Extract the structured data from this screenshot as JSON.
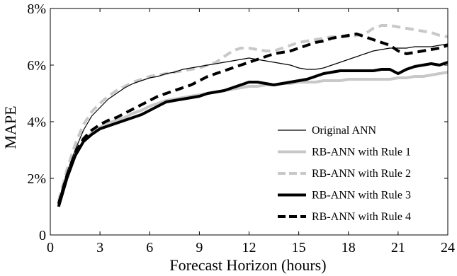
{
  "chart_data": {
    "type": "line",
    "xlabel": "Forecast Horizon (hours)",
    "ylabel": "MAPE",
    "xlim": [
      0,
      24
    ],
    "ylim": [
      0,
      8
    ],
    "x_ticks": [
      0,
      3,
      6,
      9,
      12,
      15,
      18,
      21,
      24
    ],
    "x_tick_labels": [
      "0",
      "3",
      "6",
      "9",
      "12",
      "15",
      "18",
      "21",
      "24"
    ],
    "y_ticks": [
      0,
      2,
      4,
      6,
      8
    ],
    "y_tick_labels": [
      "0",
      "2%",
      "4%",
      "6%",
      "8%"
    ],
    "grid": false,
    "legend_position": "bottom-right",
    "series": [
      {
        "name": "Original ANN",
        "color": "#000000",
        "style": "solid-thin",
        "x": [
          0.5,
          1,
          1.5,
          2,
          2.5,
          3,
          3.5,
          4,
          4.5,
          5,
          5.5,
          6,
          6.5,
          7,
          7.5,
          8,
          8.5,
          9,
          9.5,
          10,
          10.5,
          11,
          11.5,
          12,
          12.5,
          13,
          13.5,
          14,
          14.5,
          15,
          15.5,
          16,
          16.5,
          17,
          17.5,
          18,
          18.5,
          19,
          19.5,
          20,
          20.5,
          21,
          21.5,
          22,
          22.5,
          23,
          23.5,
          24
        ],
        "values": [
          1.2,
          2.2,
          3.0,
          3.7,
          4.2,
          4.5,
          4.8,
          5.0,
          5.2,
          5.35,
          5.45,
          5.55,
          5.6,
          5.7,
          5.75,
          5.85,
          5.9,
          5.95,
          6.0,
          6.05,
          6.1,
          6.15,
          6.2,
          6.25,
          6.2,
          6.15,
          6.1,
          6.05,
          6.0,
          5.9,
          5.85,
          5.85,
          5.9,
          6.0,
          6.1,
          6.2,
          6.3,
          6.4,
          6.5,
          6.55,
          6.6,
          6.6,
          6.6,
          6.65,
          6.65,
          6.65,
          6.7,
          6.75
        ]
      },
      {
        "name": "RB-ANN with Rule 1",
        "color": "#c8c8c8",
        "style": "solid-thick",
        "x": [
          0.5,
          1,
          1.5,
          2,
          2.5,
          3,
          3.5,
          4,
          4.5,
          5,
          5.5,
          6,
          6.5,
          7,
          7.5,
          8,
          8.5,
          9,
          9.5,
          10,
          10.5,
          11,
          11.5,
          12,
          12.5,
          13,
          13.5,
          14,
          14.5,
          15,
          15.5,
          16,
          16.5,
          17,
          17.5,
          18,
          18.5,
          19,
          19.5,
          20,
          20.5,
          21,
          21.5,
          22,
          22.5,
          23,
          23.5,
          24
        ],
        "values": [
          1.0,
          2.0,
          2.8,
          3.3,
          3.6,
          3.8,
          3.95,
          4.05,
          4.15,
          4.3,
          4.4,
          4.55,
          4.65,
          4.75,
          4.8,
          4.85,
          4.9,
          4.95,
          5.0,
          5.05,
          5.1,
          5.15,
          5.2,
          5.25,
          5.25,
          5.3,
          5.3,
          5.35,
          5.35,
          5.4,
          5.4,
          5.4,
          5.45,
          5.45,
          5.45,
          5.5,
          5.5,
          5.5,
          5.5,
          5.5,
          5.5,
          5.55,
          5.55,
          5.6,
          5.6,
          5.65,
          5.7,
          5.75
        ]
      },
      {
        "name": "RB-ANN with Rule 2",
        "color": "#c8c8c8",
        "style": "dashed-thick",
        "x": [
          0.5,
          1,
          1.5,
          2,
          2.5,
          3,
          3.5,
          4,
          4.5,
          5,
          5.5,
          6,
          6.5,
          7,
          7.5,
          8,
          8.5,
          9,
          9.5,
          10,
          10.5,
          11,
          11.5,
          12,
          12.5,
          13,
          13.5,
          14,
          14.5,
          15,
          15.5,
          16,
          16.5,
          17,
          17.5,
          18,
          18.5,
          19,
          19.5,
          20,
          20.5,
          21,
          21.5,
          22,
          22.5,
          23,
          23.5,
          24
        ],
        "values": [
          1.2,
          2.3,
          3.2,
          3.9,
          4.35,
          4.65,
          4.9,
          5.1,
          5.25,
          5.4,
          5.5,
          5.6,
          5.65,
          5.7,
          5.75,
          5.8,
          5.85,
          5.9,
          6.0,
          6.1,
          6.3,
          6.5,
          6.6,
          6.6,
          6.55,
          6.5,
          6.5,
          6.6,
          6.7,
          6.8,
          6.85,
          6.9,
          6.95,
          7.0,
          7.0,
          7.0,
          7.05,
          7.1,
          7.3,
          7.4,
          7.4,
          7.35,
          7.3,
          7.25,
          7.2,
          7.15,
          7.05,
          7.0
        ]
      },
      {
        "name": "RB-ANN with Rule 3",
        "color": "#000000",
        "style": "solid-thick",
        "x": [
          0.5,
          1,
          1.5,
          2,
          2.5,
          3,
          3.5,
          4,
          4.5,
          5,
          5.5,
          6,
          6.5,
          7,
          7.5,
          8,
          8.5,
          9,
          9.5,
          10,
          10.5,
          11,
          11.5,
          12,
          12.5,
          13,
          13.5,
          14,
          14.5,
          15,
          15.5,
          16,
          16.5,
          17,
          17.5,
          18,
          18.5,
          19,
          19.5,
          20,
          20.5,
          21,
          21.5,
          22,
          22.5,
          23,
          23.5,
          24
        ],
        "values": [
          1.0,
          2.0,
          2.8,
          3.3,
          3.55,
          3.75,
          3.85,
          3.95,
          4.05,
          4.15,
          4.25,
          4.4,
          4.55,
          4.7,
          4.75,
          4.8,
          4.85,
          4.9,
          5.0,
          5.05,
          5.1,
          5.2,
          5.3,
          5.4,
          5.4,
          5.35,
          5.3,
          5.35,
          5.4,
          5.45,
          5.5,
          5.6,
          5.7,
          5.75,
          5.8,
          5.8,
          5.8,
          5.8,
          5.8,
          5.85,
          5.85,
          5.7,
          5.85,
          5.95,
          6.0,
          6.05,
          6.0,
          6.1
        ]
      },
      {
        "name": "RB-ANN with Rule 4",
        "color": "#000000",
        "style": "dashed-thick",
        "x": [
          0.5,
          1,
          1.5,
          2,
          2.5,
          3,
          3.5,
          4,
          4.5,
          5,
          5.5,
          6,
          6.5,
          7,
          7.5,
          8,
          8.5,
          9,
          9.5,
          10,
          10.5,
          11,
          11.5,
          12,
          12.5,
          13,
          13.5,
          14,
          14.5,
          15,
          15.5,
          16,
          16.5,
          17,
          17.5,
          18,
          18.5,
          19,
          19.5,
          20,
          20.5,
          21,
          21.5,
          22,
          22.5,
          23,
          23.5,
          24
        ],
        "values": [
          1.1,
          2.1,
          2.9,
          3.4,
          3.7,
          3.9,
          4.05,
          4.15,
          4.3,
          4.45,
          4.6,
          4.75,
          4.9,
          5.0,
          5.1,
          5.2,
          5.3,
          5.45,
          5.6,
          5.7,
          5.8,
          5.9,
          6.0,
          6.1,
          6.2,
          6.3,
          6.4,
          6.45,
          6.5,
          6.6,
          6.7,
          6.8,
          6.85,
          6.95,
          7.0,
          7.05,
          7.1,
          7.0,
          6.9,
          6.8,
          6.7,
          6.5,
          6.4,
          6.45,
          6.5,
          6.55,
          6.6,
          6.7
        ]
      }
    ]
  }
}
